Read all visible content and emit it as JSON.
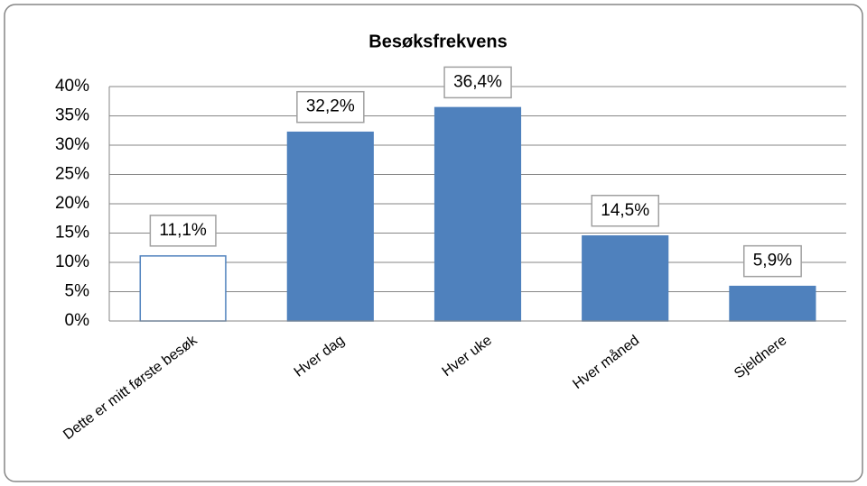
{
  "chart_data": {
    "type": "bar",
    "title": "Besøksfrekvens",
    "categories": [
      "Dette er mitt første besøk",
      "Hver dag",
      "Hver uke",
      "Hver måned",
      "Sjeldnere"
    ],
    "values": [
      11.1,
      32.2,
      36.4,
      14.5,
      5.9
    ],
    "value_labels": [
      "11,1%",
      "32,2%",
      "36,4%",
      "14,5%",
      "5,9%"
    ],
    "colors": [
      "#ffffff",
      "#4f81bd",
      "#4f81bd",
      "#4f81bd",
      "#4f81bd"
    ],
    "edgecolor": "#4f81bd",
    "ylim": [
      0,
      40
    ],
    "yticks": [
      {
        "value": 0,
        "label": "0%"
      },
      {
        "value": 5,
        "label": "5%"
      },
      {
        "value": 10,
        "label": "10%"
      },
      {
        "value": 15,
        "label": "15%"
      },
      {
        "value": 20,
        "label": "20%"
      },
      {
        "value": 25,
        "label": "25%"
      },
      {
        "value": 30,
        "label": "30%"
      },
      {
        "value": 35,
        "label": "35%"
      },
      {
        "value": 40,
        "label": "40%"
      }
    ],
    "grid": true
  }
}
